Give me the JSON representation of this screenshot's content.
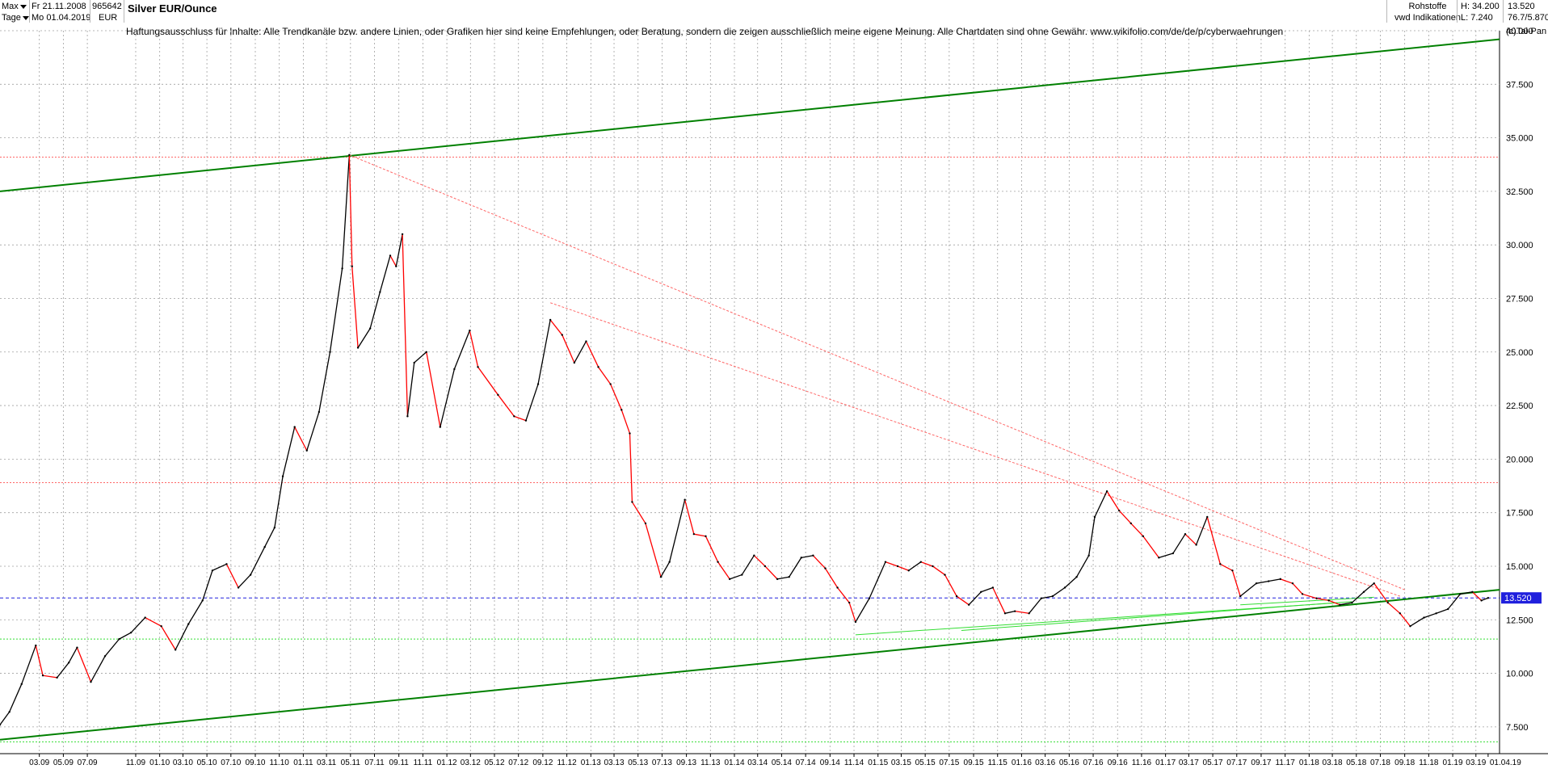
{
  "header": {
    "range_selector": "Max",
    "interval_selector": "Tage",
    "date_from": "Fr 21.11.2008",
    "date_to": "Mo 01.04.2019",
    "wkn": "965642",
    "currency": "EUR",
    "instrument": "Silver EUR/Ounce",
    "category": "Rohstoffe",
    "source": "vwd Indikationen",
    "high_label": "H: 34.200",
    "low_label": "L: 7.240",
    "last_price": "13.520",
    "change_pct": "76.7/5.870",
    "copyright": "(c)Tai-Pan"
  },
  "disclaimer": "Haftungsausschluss für Inhalte: Alle Trendkanäle bzw. andere Linien, oder Grafiken hier sind keine Empfehlungen, oder Beratung, sondern die zeigen ausschließlich meine eigene Meinung. Alle Chartdaten sind ohne Gewähr.  www.wikifolio.com/de/de/p/cyberwaehrungen",
  "colors": {
    "price_up": "#000000",
    "price_down": "#ff0000",
    "trend_green": "#008000",
    "support_light_green": "#33dd33",
    "resistance_red": "#ff6666",
    "current_price_blue": "#2020dd",
    "grid": "#a0a0a0"
  },
  "chart_data": {
    "type": "line",
    "title": "Silver EUR/Ounce",
    "xlabel": "",
    "ylabel": "",
    "ylim": [
      6.25,
      40.0
    ],
    "xlim": [
      "2008-11-21",
      "2019-04-30"
    ],
    "grid": true,
    "y_ticks": [
      "7.500",
      "10.000",
      "12.500",
      "15.000",
      "17.500",
      "20.000",
      "22.500",
      "25.000",
      "27.500",
      "30.000",
      "32.500",
      "35.000",
      "37.500",
      "40.000"
    ],
    "y_tick_values": [
      7.5,
      10,
      12.5,
      15,
      17.5,
      20,
      22.5,
      25,
      27.5,
      30,
      32.5,
      35,
      37.5,
      40
    ],
    "x_tick_labels": [
      "03.09",
      "05.09",
      "07.09",
      "11.09",
      "01.10",
      "03.10",
      "05.10",
      "07.10",
      "09.10",
      "11.10",
      "01.11",
      "03.11",
      "05.11",
      "07.11",
      "09.11",
      "11.11",
      "01.12",
      "03.12",
      "05.12",
      "07.12",
      "09.12",
      "11.12",
      "01.13",
      "03.13",
      "05.13",
      "07.13",
      "09.13",
      "11.13",
      "01.14",
      "03.14",
      "05.14",
      "07.14",
      "09.14",
      "11.14",
      "01.15",
      "03.15",
      "05.15",
      "07.15",
      "09.15",
      "11.15",
      "01.16",
      "03.16",
      "05.16",
      "07.16",
      "09.16",
      "11.16",
      "01.17",
      "03.17",
      "05.17",
      "07.17",
      "09.17",
      "11.17",
      "01.18",
      "03.18",
      "05.18",
      "07.18",
      "09.18",
      "11.18",
      "01.19",
      "03.19",
      "01.04.19"
    ],
    "x_tick_dates": [
      "2009-03-01",
      "2009-05-01",
      "2009-07-01",
      "2009-11-01",
      "2010-01-01",
      "2010-03-01",
      "2010-05-01",
      "2010-07-01",
      "2010-09-01",
      "2010-11-01",
      "2011-01-01",
      "2011-03-01",
      "2011-05-01",
      "2011-07-01",
      "2011-09-01",
      "2011-11-01",
      "2012-01-01",
      "2012-03-01",
      "2012-05-01",
      "2012-07-01",
      "2012-09-01",
      "2012-11-01",
      "2013-01-01",
      "2013-03-01",
      "2013-05-01",
      "2013-07-01",
      "2013-09-01",
      "2013-11-01",
      "2014-01-01",
      "2014-03-01",
      "2014-05-01",
      "2014-07-01",
      "2014-09-01",
      "2014-11-01",
      "2015-01-01",
      "2015-03-01",
      "2015-05-01",
      "2015-07-01",
      "2015-09-01",
      "2015-11-01",
      "2016-01-01",
      "2016-03-01",
      "2016-05-01",
      "2016-07-01",
      "2016-09-01",
      "2016-11-01",
      "2017-01-01",
      "2017-03-01",
      "2017-05-01",
      "2017-07-01",
      "2017-09-01",
      "2017-11-01",
      "2018-01-01",
      "2018-03-01",
      "2018-05-01",
      "2018-07-01",
      "2018-09-01",
      "2018-11-01",
      "2019-01-01",
      "2019-03-01",
      "2019-04-01"
    ],
    "series": [
      {
        "x": [
          "2008-11-21",
          "2008-12-15",
          "2009-01-15",
          "2009-02-20",
          "2009-03-10",
          "2009-04-15",
          "2009-05-15",
          "2009-06-05",
          "2009-07-10",
          "2009-08-15",
          "2009-09-20",
          "2009-10-20",
          "2009-11-25",
          "2010-01-05",
          "2010-02-10",
          "2010-03-15",
          "2010-04-20",
          "2010-05-15",
          "2010-06-20",
          "2010-07-20",
          "2010-08-20",
          "2010-09-25",
          "2010-10-20",
          "2010-11-10",
          "2010-12-10",
          "2011-01-10",
          "2011-02-10",
          "2011-03-10",
          "2011-04-10",
          "2011-04-28",
          "2011-05-05",
          "2011-05-20",
          "2011-06-20",
          "2011-07-15",
          "2011-08-10",
          "2011-08-25",
          "2011-09-10",
          "2011-09-23",
          "2011-10-10",
          "2011-11-10",
          "2011-12-15",
          "2012-01-20",
          "2012-02-28",
          "2012-03-20",
          "2012-05-10",
          "2012-06-20",
          "2012-07-20",
          "2012-08-20",
          "2012-09-20",
          "2012-10-20",
          "2012-11-20",
          "2012-12-20",
          "2013-01-20",
          "2013-02-20",
          "2013-03-20",
          "2013-04-10",
          "2013-04-16",
          "2013-05-20",
          "2013-06-28",
          "2013-07-20",
          "2013-08-28",
          "2013-09-20",
          "2013-10-20",
          "2013-11-20",
          "2013-12-20",
          "2014-01-20",
          "2014-02-20",
          "2014-03-20",
          "2014-04-20",
          "2014-05-20",
          "2014-06-20",
          "2014-07-20",
          "2014-08-20",
          "2014-09-20",
          "2014-10-20",
          "2014-11-05",
          "2014-12-10",
          "2015-01-20",
          "2015-02-20",
          "2015-03-20",
          "2015-04-20",
          "2015-05-20",
          "2015-06-20",
          "2015-07-20",
          "2015-08-20",
          "2015-09-20",
          "2015-10-20",
          "2015-11-20",
          "2015-12-15",
          "2016-01-20",
          "2016-02-20",
          "2016-03-20",
          "2016-04-20",
          "2016-05-20",
          "2016-06-20",
          "2016-07-05",
          "2016-08-05",
          "2016-09-05",
          "2016-10-05",
          "2016-11-05",
          "2016-12-15",
          "2017-01-20",
          "2017-02-20",
          "2017-03-20",
          "2017-04-17",
          "2017-05-20",
          "2017-06-20",
          "2017-07-10",
          "2017-08-20",
          "2017-09-20",
          "2017-10-20",
          "2017-11-20",
          "2017-12-15",
          "2018-01-20",
          "2018-02-20",
          "2018-03-20",
          "2018-04-20",
          "2018-05-20",
          "2018-06-15",
          "2018-07-20",
          "2018-08-20",
          "2018-09-15",
          "2018-10-20",
          "2018-11-20",
          "2018-12-20",
          "2019-01-20",
          "2019-02-20",
          "2019-03-15",
          "2019-04-01"
        ],
        "values": [
          7.6,
          8.2,
          9.5,
          11.3,
          9.9,
          9.8,
          10.5,
          11.2,
          9.6,
          10.8,
          11.6,
          11.9,
          12.6,
          12.2,
          11.1,
          12.3,
          13.4,
          14.8,
          15.1,
          14.0,
          14.6,
          15.9,
          16.8,
          19.2,
          21.5,
          20.4,
          22.2,
          25.0,
          28.9,
          34.2,
          29.0,
          25.2,
          26.1,
          27.8,
          29.5,
          29.0,
          30.5,
          22.0,
          24.5,
          25.0,
          21.5,
          24.2,
          26.0,
          24.3,
          23.0,
          22.0,
          21.8,
          23.5,
          26.5,
          25.8,
          24.5,
          25.5,
          24.3,
          23.5,
          22.3,
          21.2,
          18.0,
          17.0,
          14.5,
          15.2,
          18.1,
          16.5,
          16.4,
          15.2,
          14.4,
          14.6,
          15.5,
          15.0,
          14.4,
          14.5,
          15.4,
          15.5,
          14.9,
          14.0,
          13.3,
          12.4,
          13.5,
          15.2,
          15.0,
          14.8,
          15.2,
          15.0,
          14.6,
          13.6,
          13.2,
          13.8,
          14.0,
          12.8,
          12.9,
          12.8,
          13.5,
          13.6,
          14.0,
          14.5,
          15.5,
          17.3,
          18.5,
          17.6,
          17.0,
          16.4,
          15.4,
          15.6,
          16.5,
          16.0,
          17.3,
          15.1,
          14.8,
          13.6,
          14.2,
          14.3,
          14.4,
          14.2,
          13.7,
          13.5,
          13.4,
          13.2,
          13.3,
          13.8,
          14.2,
          13.3,
          12.8,
          12.2,
          12.6,
          12.8,
          13.0,
          13.7,
          13.8,
          13.4,
          13.52
        ]
      }
    ],
    "trend_lines": [
      {
        "name": "upper-channel",
        "from": [
          "2008-11-21",
          32.5
        ],
        "to": [
          "2019-04-30",
          39.6
        ]
      },
      {
        "name": "lower-channel",
        "from": [
          "2008-11-21",
          6.9
        ],
        "to": [
          "2019-04-30",
          13.9
        ]
      },
      {
        "name": "resistance-major",
        "from": [
          "2011-04-28",
          34.2
        ],
        "to": [
          "2018-09-01",
          13.9
        ]
      },
      {
        "name": "resistance-2012",
        "from": [
          "2012-09-20",
          27.3
        ],
        "to": [
          "2018-08-20",
          13.6
        ]
      },
      {
        "name": "support-2014",
        "from": [
          "2014-11-05",
          11.8
        ],
        "to": [
          "2018-03-20",
          13.3
        ]
      },
      {
        "name": "support-2015",
        "from": [
          "2015-08-01",
          12.0
        ],
        "to": [
          "2018-04-20",
          13.35
        ]
      },
      {
        "name": "support-2017",
        "from": [
          "2017-07-10",
          13.2
        ],
        "to": [
          "2018-06-15",
          13.55
        ]
      }
    ],
    "horizontal_lines": [
      {
        "name": "high-level",
        "y": 34.1,
        "style": "dotted",
        "color": "red"
      },
      {
        "name": "level-2016",
        "y": 18.9,
        "style": "dotted",
        "color": "red"
      },
      {
        "name": "current-price",
        "y": 13.52,
        "style": "dashed",
        "color": "blue"
      },
      {
        "name": "support-11-6",
        "y": 11.6,
        "style": "dotted",
        "color": "green"
      },
      {
        "name": "support-6-8",
        "y": 6.8,
        "style": "dotted",
        "color": "green"
      }
    ],
    "current_price_label": "13.520"
  }
}
